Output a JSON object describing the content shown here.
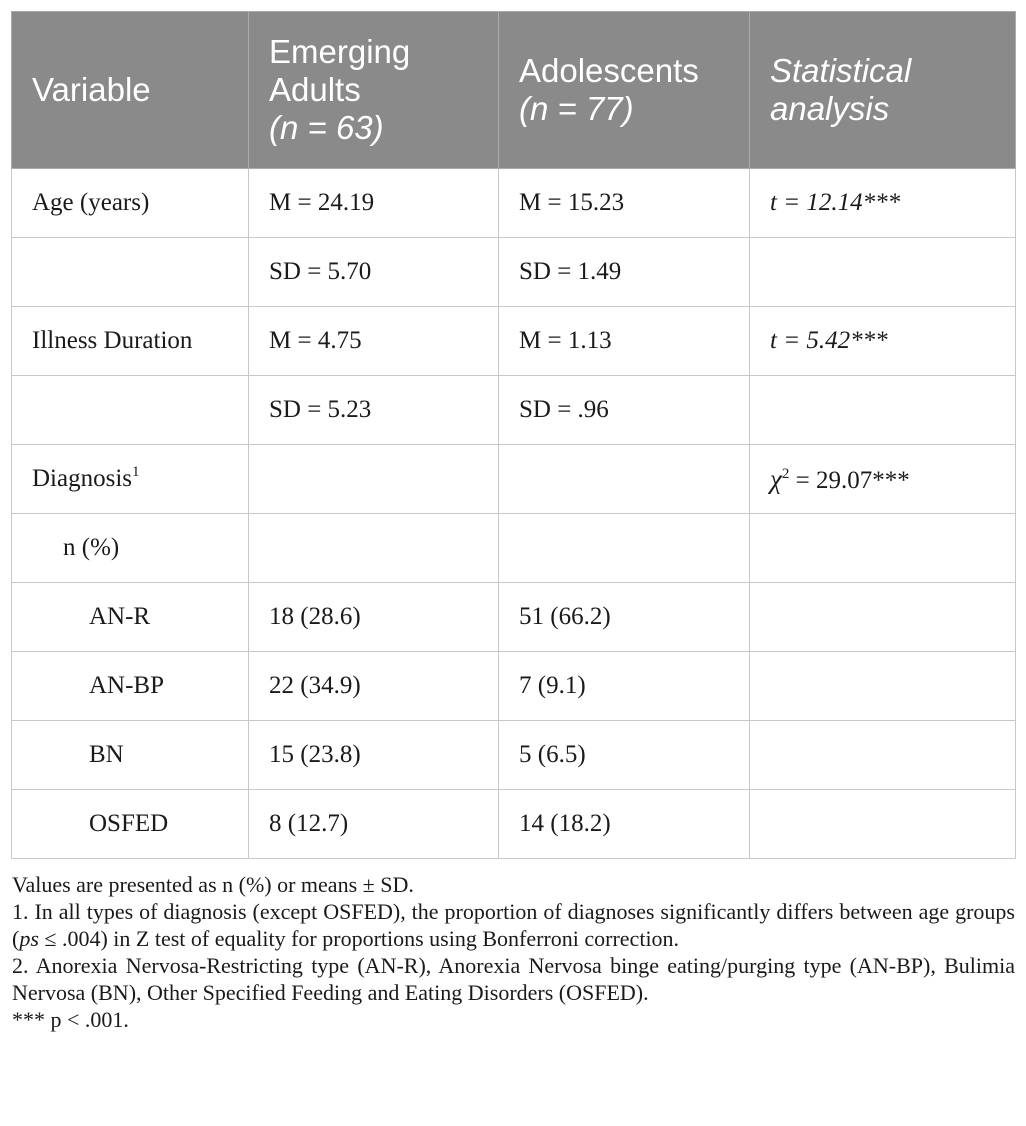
{
  "table": {
    "headers": {
      "variable": "Variable",
      "emerging_line1": "Emerging",
      "emerging_line2": "Adults",
      "emerging_n": "(n = 63)",
      "adolescents_line1": "Adolescents",
      "adolescents_n": "(n = 77)",
      "stat_line1": "Statistical",
      "stat_line2": "analysis"
    },
    "rows": [
      {
        "variable": "Age (years)",
        "emerging": "M = 24.19",
        "adolescents": "M = 15.23",
        "stat": "t = 12.14***"
      },
      {
        "variable": "",
        "emerging": "SD = 5.70",
        "adolescents": "SD = 1.49",
        "stat": ""
      },
      {
        "variable": "Illness Duration",
        "emerging": "M = 4.75",
        "adolescents": "M = 1.13",
        "stat": "t = 5.42***"
      },
      {
        "variable": "",
        "emerging": "SD = 5.23",
        "adolescents": "SD = .96",
        "stat": ""
      },
      {
        "variable": "Diagnosis",
        "variable_sup": "1",
        "emerging": "",
        "adolescents": "",
        "stat_symbol": "χ",
        "stat_sup": "2",
        "stat_rest": " = 29.07***"
      },
      {
        "variable": "n (%)",
        "emerging": "",
        "adolescents": "",
        "stat": ""
      },
      {
        "variable": "AN-R",
        "emerging": "18 (28.6)",
        "adolescents": "51 (66.2)",
        "stat": ""
      },
      {
        "variable": "AN-BP",
        "emerging": "22 (34.9)",
        "adolescents": "7 (9.1)",
        "stat": ""
      },
      {
        "variable": "BN",
        "emerging": "15 (23.8)",
        "adolescents": "5 (6.5)",
        "stat": ""
      },
      {
        "variable": "OSFED",
        "emerging": "8 (12.7)",
        "adolescents": "14 (18.2)",
        "stat": ""
      }
    ]
  },
  "notes": {
    "line1": "Values are presented as n (%) or means ± SD.",
    "note1_before": "1. In all types of diagnosis (except OSFED), the proportion of diagnoses significantly differs between age groups (",
    "note1_ps": "ps",
    "note1_after": " ≤ .004) in Z test of equality for proportions using Bonferroni correction.",
    "note2": "2. Anorexia Nervosa-Restricting type (AN-R), Anorexia Nervosa binge eating/purging type (AN-BP), Bulimia Nervosa (BN), Other Specified Feeding and Eating Disorders (OSFED).",
    "note3": "*** p < .001."
  }
}
